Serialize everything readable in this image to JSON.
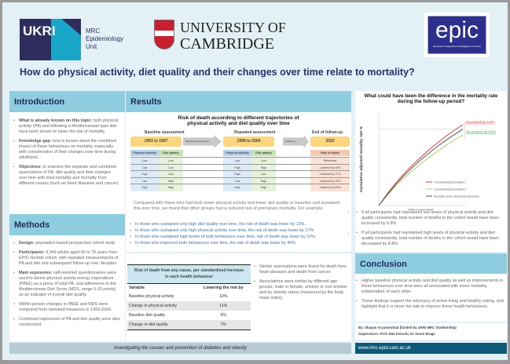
{
  "header": {
    "mrc_unit": [
      "MRC",
      "Epidemiology",
      "Unit"
    ],
    "ukri_logo": "UKRI",
    "cambridge_logo": [
      "UNIVERSITY OF",
      "CAMBRIDGE"
    ],
    "epic_logo": "epic",
    "epic_subtitle": "European Prospective Investigation of Cancer",
    "title": "How do physical activity, diet quality and their changes over time relate to mortality?"
  },
  "introduction": {
    "heading": "Introduction",
    "items": [
      {
        "label": "What is already known on this topic:",
        "text": " both physical activity (PA) and following a Mediterranean-type diet have been shown to lower the risk of mortality."
      },
      {
        "label": "Knowledge gap:",
        "text": " less is known about the combined impact of these behaviours on mortality, especially with consideration of their changes over time during adulthood."
      },
      {
        "label": "Objectives:",
        "text": " to examine the separate and combined associations of PA, diet quality and their changes over time with total mortality and mortality from different causes (such as heart diseases and cancer)."
      }
    ]
  },
  "methods": {
    "heading": "Methods",
    "items": [
      {
        "label": "Design:",
        "text": " population-based prospective cohort study"
      },
      {
        "label": "Participants:",
        "text": " 9,349 adults aged 40 to 79 years from EPIC-Norfolk cohort, with repeated measurements of PA and diet and subsequent follow-up over decades."
      },
      {
        "label": "Main exposures:",
        "text": " self-reported questionnaires were used to derive physical activity energy expenditure (PAEE) as a proxy of total PA, and adherence to the Mediterranean Diet Score (MDS, range 0-15 points) as an indicator of overall diet quality."
      },
      {
        "label": "",
        "text": "Within-person changes in PAEE and MDS were computed from repeated measures in 1993-2004."
      },
      {
        "label": "",
        "text": "Combined trajectories of PA and diet quality were also constructed."
      }
    ]
  },
  "results": {
    "heading": "Results",
    "figure_title": "Risk of death according to different trajectories of physical activity and diet quality over time",
    "baseline_label": "Baseline assessment",
    "baseline_period": "1993 to 1997",
    "exposure_arrow": "Exposure assessment",
    "repeated_label": "Repeated assessment",
    "repeated_period": "1998 to 2004",
    "followup_arrow": "Follow-up",
    "end_label": "End of follow-up",
    "end_year": "2022",
    "col_pa": "Physical activity",
    "col_diet": "Diet quality",
    "col_risk": "Risk of death",
    "rows": [
      [
        "Low",
        "Low",
        "Low",
        "Low",
        "Reference"
      ],
      [
        "Low",
        "Low",
        "High",
        "High",
        "Lowered by 40%"
      ],
      [
        "High",
        "Low",
        "High",
        "Low",
        "Lowered by 17%"
      ],
      [
        "Low",
        "High",
        "Low",
        "High",
        "Lowered by 13%"
      ],
      [
        "High",
        "High",
        "High",
        "High",
        "Lowered by 22%"
      ]
    ],
    "summary": "Compared with those who had both lower physical activity and lower diet quality at baseline and sustained this over time, we found that other groups had a reduced risk of premature mortality. For example:",
    "bullets": [
      "In those who sustained only high diet quality over time, the risk of death was lower by 13%.",
      "In those who sustained only high physical activity over time, the risk of death was lower by 17%.",
      "In those who sustained high levels of both behaviours over time, risk of death was lower by 22%.",
      "In those who improved both behaviours over time, the risk of death was lower by 40%."
    ]
  },
  "risk_table": {
    "title": "Risk of death from any cause, per standardised increase in each health behaviour",
    "headers": [
      "Variable",
      "Lowering the risk by"
    ],
    "rows": [
      [
        "Baseline physical activity",
        "10%"
      ],
      [
        "Change in physical activity",
        "11%"
      ],
      [
        "Baseline diet quality",
        "5%"
      ],
      [
        "Change in diet quality",
        "7%"
      ]
    ]
  },
  "assoc_notes": [
    "Similar associations were found for death from heart diseases and death from cancer.",
    "Associations were similar by different age groups, male or female, smoker or non-smoker and by obesity status (measured by the body mass index)."
  ],
  "chart_data": {
    "type": "line",
    "title": "What could have been the difference in the mortality rate during the follow-up period?",
    "ylabel": "Cumulative adjusted mortality rate %",
    "xlabel": "Follow-up years passed",
    "x": [
      0,
      2,
      4,
      6,
      8,
      10,
      12,
      14,
      16,
      18,
      20
    ],
    "series": [
      {
        "name": "Counterfactual scenario 1",
        "color": "#e03a3a",
        "values": [
          0,
          6,
          11.5,
          16.5,
          21,
          25,
          29,
          32.5,
          36,
          39,
          42
        ]
      },
      {
        "name": "Counterfactual scenario 2",
        "color": "#a6d46a",
        "values": [
          0,
          5.2,
          10,
          14.2,
          18,
          21.6,
          25,
          28.2,
          31.2,
          34,
          36.6
        ]
      },
      {
        "name": "Scenario under observed exposures",
        "color": "#555555",
        "values": [
          0,
          5.6,
          10.8,
          15.5,
          19.8,
          23.7,
          27.3,
          30.7,
          33.9,
          36.8,
          39.6
        ]
      }
    ],
    "annotations": [
      {
        "text": "Increased by 6.9%",
        "color": "#e03a3a"
      },
      {
        "text": "Decreased by 8.8%",
        "color": "#3aae5a"
      }
    ],
    "grid": false,
    "legend": "bottom-right"
  },
  "chart_notes": [
    "If all participants had maintained low levels of physical activity and diet quality consistently, total number of deaths in the cohort would have been increased by 6.9%.",
    "If all participants had maintained high levels of physical activity and diet quality  consistently, total number of deaths in the cohort would have been decreased by 8.8%."
  ],
  "conclusion": {
    "heading": "Conclusion",
    "items": [
      "Higher baseline physical activity and diet quality as well as improvements in these behaviours over time were all associated with lower mortality, independent of each other.",
      "These findings support the advocacy of active living and healthy eating, and highlight that it is never too late to improve these health behaviours."
    ]
  },
  "credits": {
    "by": "By: Shayan Aryannezhad (funded by UKRI MRC Studentship)",
    "supervisors": "Supervisors: Prof. Nita Forouhi, Dr Soren Brage"
  },
  "footer": {
    "tagline": "Investigating the causes and prevention of diabetes and obesity",
    "url": "www.mrc-epid.cam.ac.uk"
  }
}
